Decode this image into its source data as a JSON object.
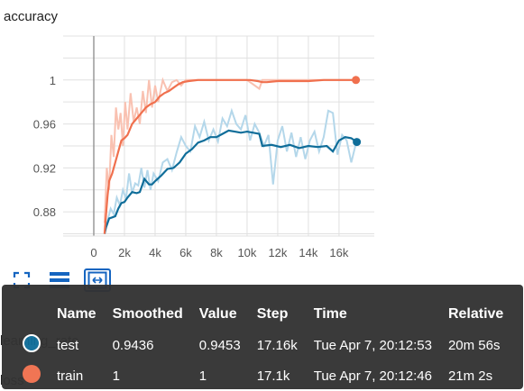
{
  "card": {
    "title": "accuracy",
    "next_card_title": "learning_rate",
    "next_card_title_2": "loss"
  },
  "toolbar": {
    "items": [
      {
        "name": "fullscreen-icon"
      },
      {
        "name": "data-table-icon"
      },
      {
        "name": "fit-domain-icon"
      }
    ]
  },
  "colors": {
    "train": "#f0704e",
    "train_raw": "#f9c1b1",
    "test": "#0f6d99",
    "test_raw": "#b4d7ea",
    "axis": "#999999",
    "grid": "#e0e0e0"
  },
  "chart_data": {
    "type": "line",
    "title": "accuracy",
    "xlabel": "",
    "ylabel": "",
    "xlim": [
      -2000,
      18300
    ],
    "ylim": [
      0.858,
      1.04
    ],
    "x_ticks": [
      {
        "value": 0,
        "label": "0"
      },
      {
        "value": 2000,
        "label": "2k"
      },
      {
        "value": 4000,
        "label": "4k"
      },
      {
        "value": 6000,
        "label": "6k"
      },
      {
        "value": 8000,
        "label": "8k"
      },
      {
        "value": 10000,
        "label": "10k"
      },
      {
        "value": 12000,
        "label": "12k"
      },
      {
        "value": 14000,
        "label": "14k"
      },
      {
        "value": 16000,
        "label": "16k"
      }
    ],
    "y_ticks": [
      {
        "value": 0.88,
        "label": "0.88"
      },
      {
        "value": 0.92,
        "label": "0.92"
      },
      {
        "value": 0.96,
        "label": "0.96"
      },
      {
        "value": 1.0,
        "label": "1"
      }
    ],
    "grid": true,
    "series": [
      {
        "name": "test",
        "smoothed_x": [
          700,
          800,
          1000,
          1200,
          1400,
          1600,
          1800,
          2000,
          2200,
          2500,
          2800,
          3000,
          3300,
          3600,
          3800,
          4000,
          4400,
          4800,
          5200,
          5600,
          6000,
          6400,
          6800,
          7200,
          7600,
          8000,
          8400,
          8800,
          9200,
          9600,
          10000,
          10400,
          10800,
          11000,
          11600,
          12200,
          12800,
          13400,
          14000,
          14600,
          15200,
          15600,
          16000,
          16400,
          16800,
          17160
        ],
        "smoothed_y": [
          0.86,
          0.866,
          0.874,
          0.875,
          0.876,
          0.883,
          0.888,
          0.889,
          0.893,
          0.898,
          0.897,
          0.898,
          0.91,
          0.905,
          0.905,
          0.908,
          0.913,
          0.919,
          0.92,
          0.925,
          0.933,
          0.937,
          0.943,
          0.945,
          0.948,
          0.948,
          0.951,
          0.954,
          0.953,
          0.952,
          0.953,
          0.952,
          0.951,
          0.94,
          0.941,
          0.939,
          0.941,
          0.938,
          0.94,
          0.939,
          0.94,
          0.935,
          0.945,
          0.948,
          0.947,
          0.9436
        ],
        "raw_x": [
          700,
          900,
          1100,
          1300,
          1500,
          1700,
          1900,
          2100,
          2300,
          2500,
          2700,
          2900,
          3100,
          3300,
          3500,
          3700,
          3900,
          4200,
          4500,
          4800,
          5100,
          5400,
          5700,
          6000,
          6300,
          6600,
          6900,
          7200,
          7500,
          7800,
          8100,
          8400,
          8700,
          9000,
          9300,
          9600,
          9900,
          10200,
          10500,
          10800,
          11100,
          11400,
          11700,
          12000,
          12300,
          12600,
          12900,
          13200,
          13500,
          13800,
          14100,
          14400,
          14700,
          15000,
          15300,
          15600,
          15900,
          16200,
          16500,
          16800,
          17160
        ],
        "raw_y": [
          0.86,
          0.872,
          0.883,
          0.878,
          0.893,
          0.886,
          0.9,
          0.892,
          0.915,
          0.897,
          0.906,
          0.904,
          0.92,
          0.902,
          0.918,
          0.9,
          0.915,
          0.908,
          0.925,
          0.928,
          0.918,
          0.934,
          0.948,
          0.94,
          0.935,
          0.958,
          0.948,
          0.962,
          0.945,
          0.955,
          0.944,
          0.965,
          0.958,
          0.972,
          0.96,
          0.955,
          0.968,
          0.945,
          0.96,
          0.952,
          0.94,
          0.95,
          0.905,
          0.945,
          0.958,
          0.935,
          0.952,
          0.93,
          0.948,
          0.928,
          0.945,
          0.953,
          0.935,
          0.948,
          0.972,
          0.97,
          0.932,
          0.95,
          0.945,
          0.925,
          0.9453
        ]
      },
      {
        "name": "train",
        "smoothed_x": [
          700,
          800,
          900,
          1000,
          1200,
          1400,
          1600,
          1800,
          2000,
          2200,
          2500,
          2800,
          3100,
          3400,
          3700,
          4000,
          4300,
          4600,
          4900,
          5200,
          5500,
          5800,
          6200,
          6800,
          7500,
          8500,
          9500,
          10200,
          10700,
          11000,
          11300,
          12000,
          13000,
          14000,
          15000,
          16000,
          17100
        ],
        "smoothed_y": [
          0.86,
          0.878,
          0.895,
          0.908,
          0.915,
          0.925,
          0.935,
          0.945,
          0.947,
          0.95,
          0.96,
          0.965,
          0.97,
          0.975,
          0.978,
          0.98,
          0.985,
          0.988,
          0.99,
          0.993,
          0.996,
          0.998,
          0.999,
          1.0,
          1.0,
          1.0,
          1.0,
          1.0,
          0.999,
          0.998,
          0.998,
          0.999,
          0.999,
          0.999,
          1.0,
          1.0,
          1.0
        ],
        "raw_x": [
          700,
          850,
          1000,
          1150,
          1300,
          1450,
          1600,
          1750,
          1900,
          2050,
          2200,
          2400,
          2600,
          2800,
          3000,
          3200,
          3400,
          3600,
          3800,
          4000,
          4200,
          4500,
          4800,
          5100,
          5400,
          5700,
          6000,
          6500,
          7000,
          8000,
          9000,
          10000,
          10800,
          11000,
          11200,
          12000,
          13000,
          14000,
          15000,
          16000,
          17100
        ],
        "raw_y": [
          0.87,
          0.92,
          0.9,
          0.95,
          0.93,
          0.975,
          0.955,
          0.97,
          0.94,
          0.98,
          0.955,
          0.988,
          0.962,
          0.975,
          0.96,
          0.99,
          0.97,
          1.0,
          0.975,
          0.995,
          0.98,
          1.0,
          0.99,
          0.998,
          1.0,
          0.995,
          1.0,
          1.0,
          1.0,
          1.0,
          1.0,
          1.0,
          0.992,
          1.0,
          1.0,
          1.0,
          1.0,
          1.0,
          1.0,
          1.0,
          1.0
        ]
      }
    ]
  },
  "tooltip": {
    "headers": [
      "Name",
      "Smoothed",
      "Value",
      "Step",
      "Time",
      "Relative"
    ],
    "rows": [
      {
        "name": "test",
        "smoothed": "0.9436",
        "value": "0.9453",
        "step": "17.16k",
        "time": "Tue Apr 7, 20:12:53",
        "relative": "20m 56s"
      },
      {
        "name": "train",
        "smoothed": "1",
        "value": "1",
        "step": "17.1k",
        "time": "Tue Apr 7, 20:12:46",
        "relative": "21m 2s"
      }
    ]
  }
}
